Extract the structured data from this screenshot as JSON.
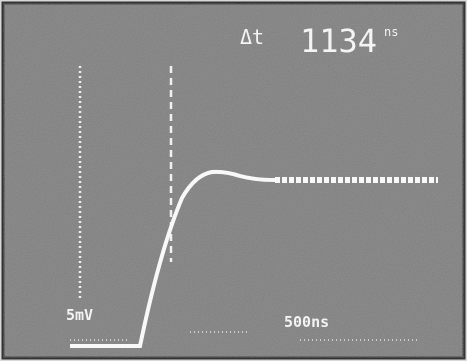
{
  "readout": {
    "symbol": "Δt",
    "value": "1134",
    "unit": "ns"
  },
  "scales": {
    "vertical": "5mV",
    "horizontal": "500ns"
  }
}
